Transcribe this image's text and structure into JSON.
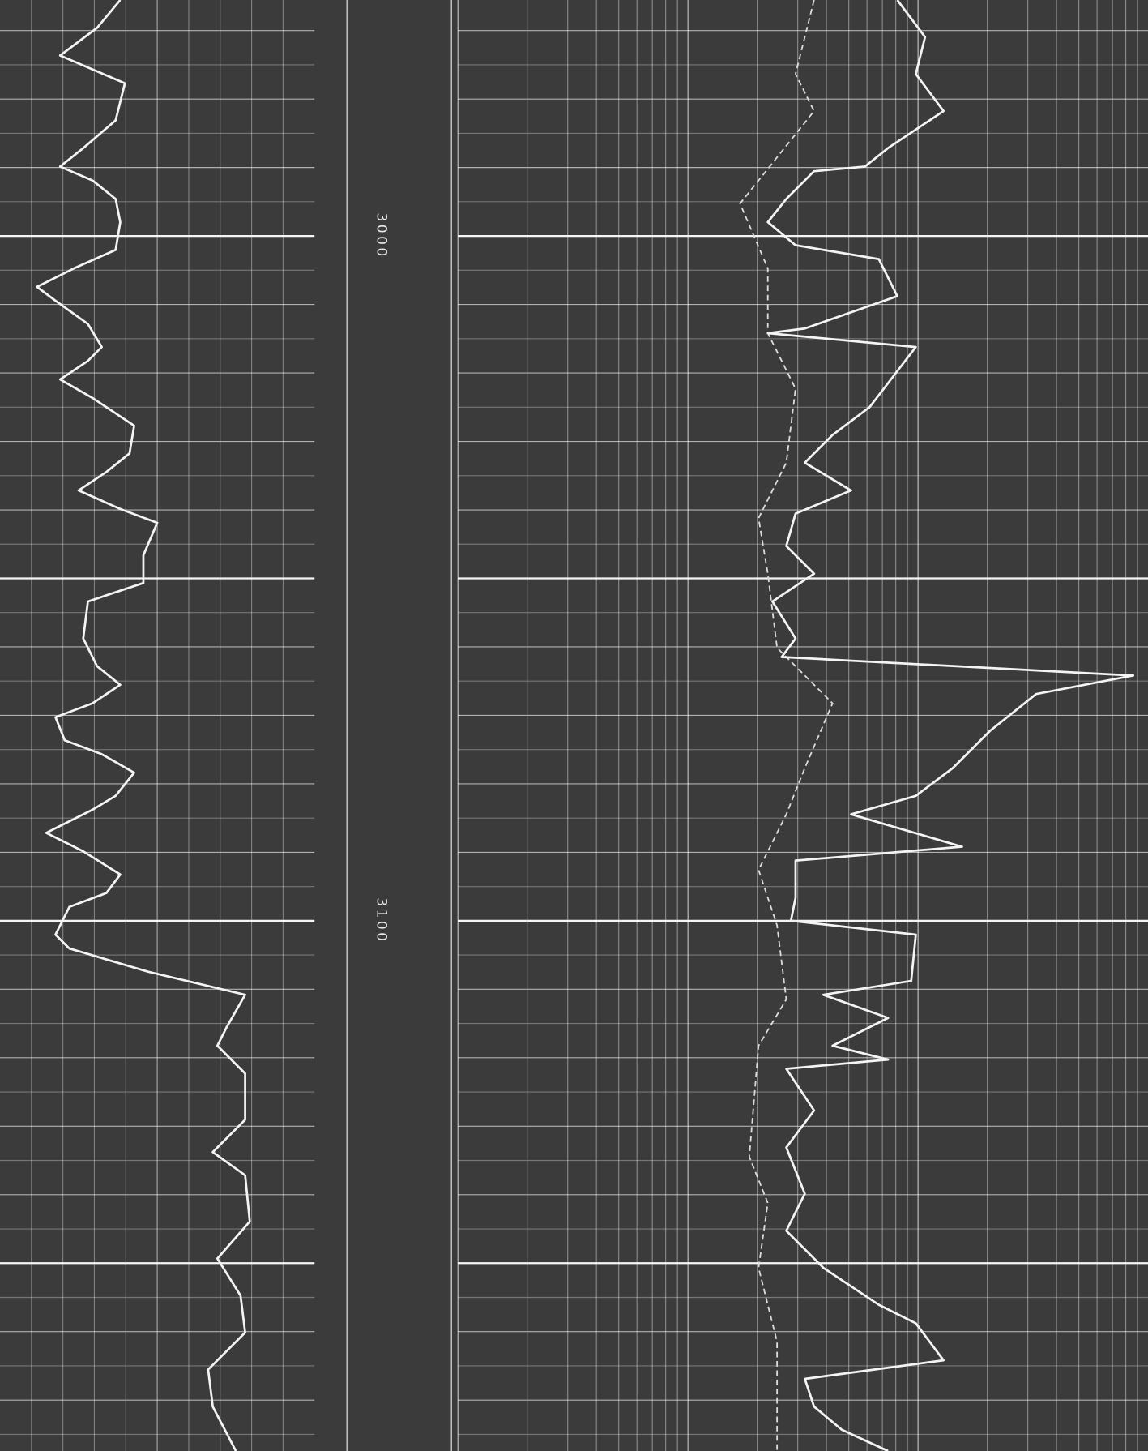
{
  "depth_track": {
    "labels": [
      "3000",
      "3100"
    ]
  }
}
